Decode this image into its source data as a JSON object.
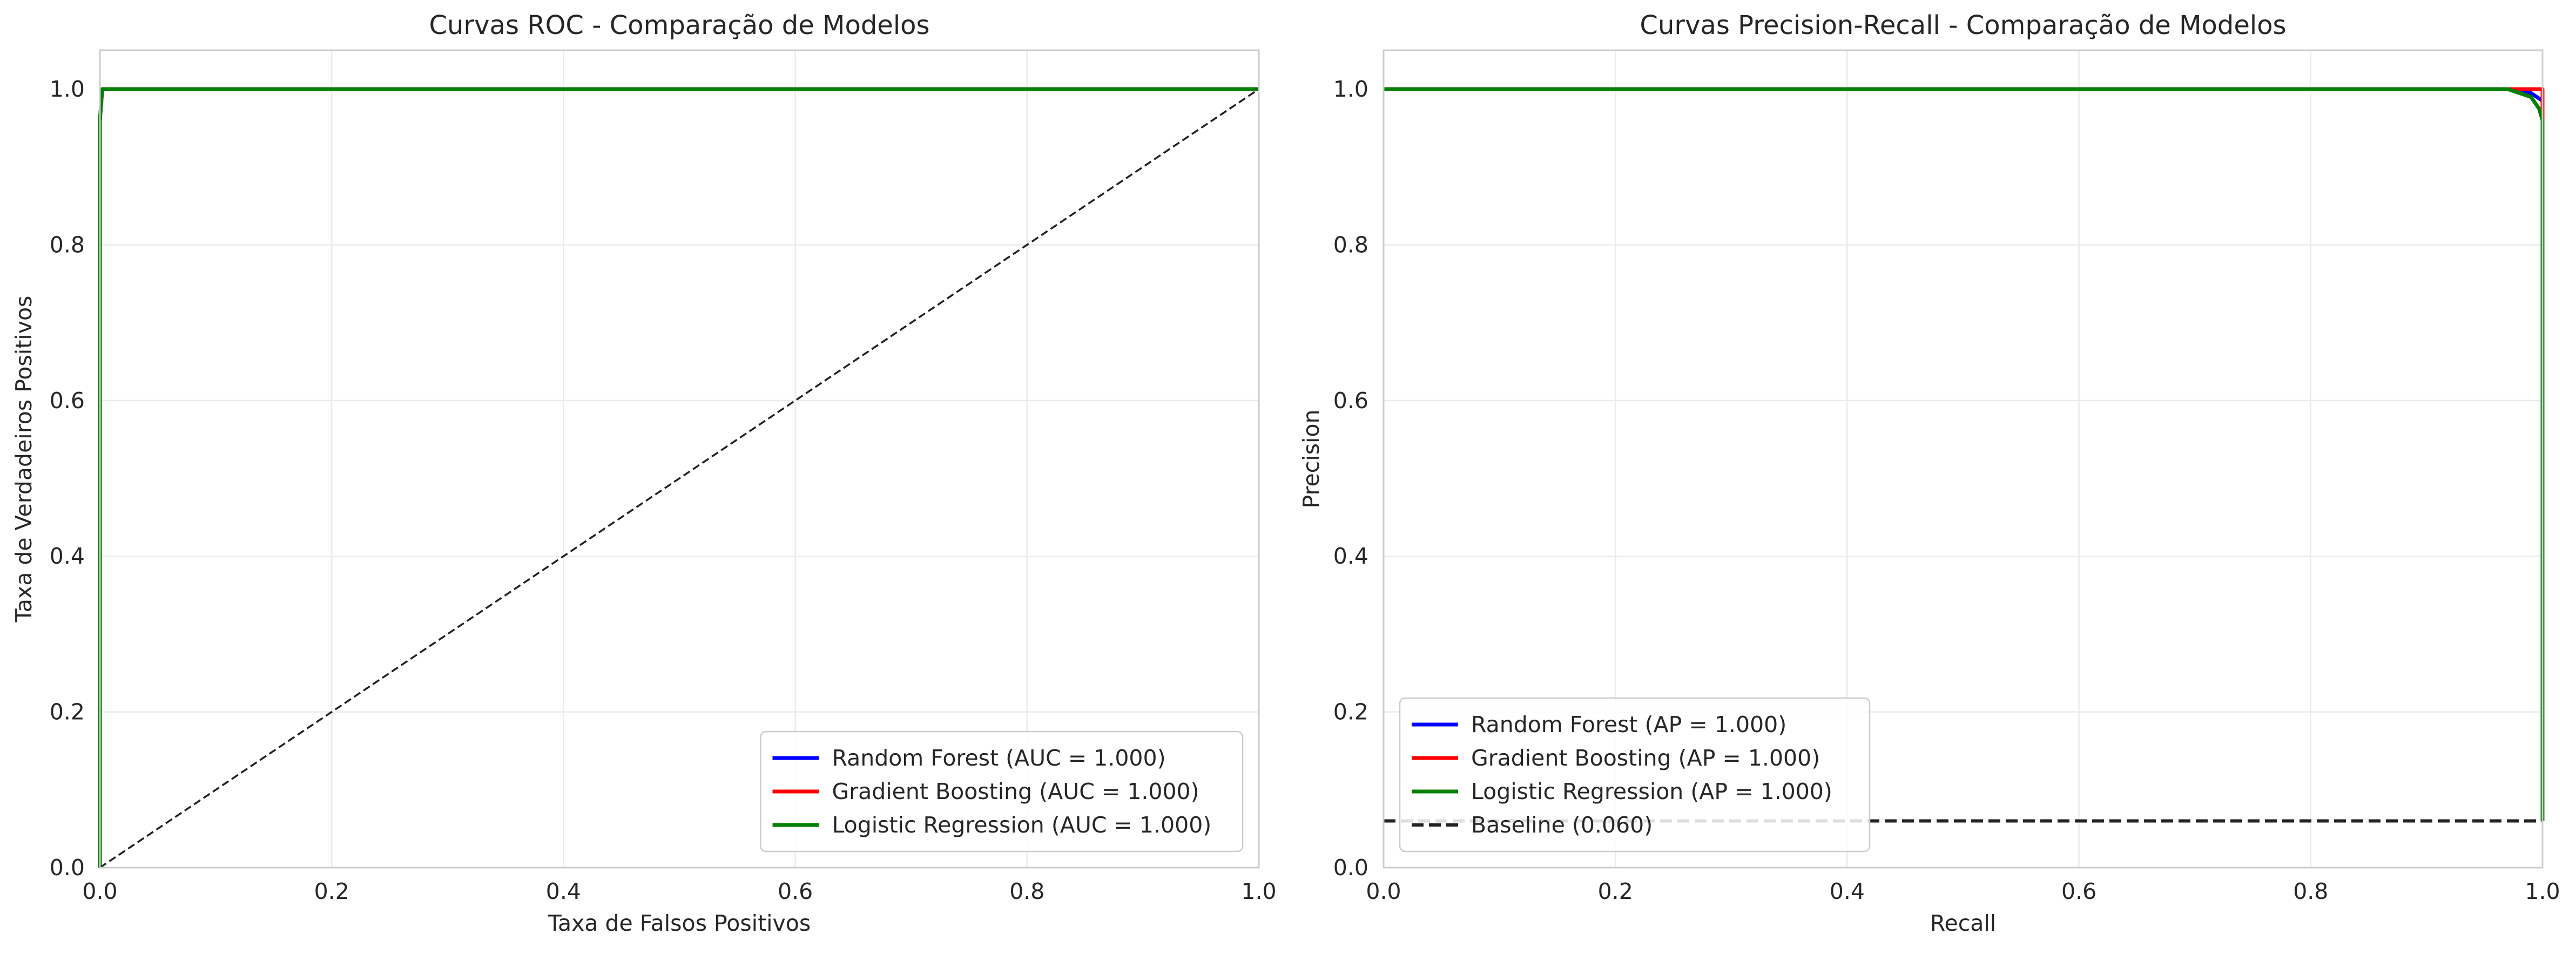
{
  "chart_data": [
    {
      "type": "line",
      "title": "Curvas ROC - Comparação de Modelos",
      "xlabel": "Taxa de Falsos Positivos",
      "ylabel": "Taxa de Verdadeiros Positivos",
      "xlim": [
        0,
        1.0
      ],
      "ylim": [
        0,
        1.05
      ],
      "xticks": [
        "0.0",
        "0.2",
        "0.4",
        "0.6",
        "0.8",
        "1.0"
      ],
      "yticks": [
        "0.0",
        "0.2",
        "0.4",
        "0.6",
        "0.8",
        "1.0"
      ],
      "grid": true,
      "legend_position": "lower-right",
      "series": [
        {
          "name": "Random Forest (AUC = 1.000)",
          "color": "#0000ff",
          "style": "solid",
          "x": [
            0,
            0,
            0.002,
            1.0
          ],
          "y": [
            0,
            0.96,
            1.0,
            1.0
          ]
        },
        {
          "name": "Gradient Boosting (AUC = 1.000)",
          "color": "#ff0000",
          "style": "solid",
          "x": [
            0,
            0,
            0.002,
            1.0
          ],
          "y": [
            0,
            0.96,
            1.0,
            1.0
          ]
        },
        {
          "name": "Logistic Regression (AUC = 1.000)",
          "color": "#008000",
          "style": "solid",
          "x": [
            0,
            0,
            0.002,
            1.0
          ],
          "y": [
            0,
            0.96,
            1.0,
            1.0
          ]
        },
        {
          "name": "",
          "color": "#222222",
          "style": "dashed-thin",
          "legend": false,
          "x": [
            0,
            1.0
          ],
          "y": [
            0,
            1.0
          ]
        }
      ]
    },
    {
      "type": "line",
      "title": "Curvas Precision-Recall - Comparação de Modelos",
      "xlabel": "Recall",
      "ylabel": "Precision",
      "xlim": [
        0,
        1.0
      ],
      "ylim": [
        0,
        1.05
      ],
      "xticks": [
        "0.0",
        "0.2",
        "0.4",
        "0.6",
        "0.8",
        "1.0"
      ],
      "yticks": [
        "0.0",
        "0.2",
        "0.4",
        "0.6",
        "0.8",
        "1.0"
      ],
      "grid": true,
      "legend_position": "lower-left",
      "series": [
        {
          "name": "Random Forest (AP = 1.000)",
          "color": "#0000ff",
          "style": "solid",
          "x": [
            0,
            0.97,
            0.99,
            1.0,
            1.0
          ],
          "y": [
            1.0,
            1.0,
            0.995,
            0.985,
            0.06
          ]
        },
        {
          "name": "Gradient Boosting (AP = 1.000)",
          "color": "#ff0000",
          "style": "solid",
          "x": [
            0,
            1.0,
            1.0
          ],
          "y": [
            1.0,
            1.0,
            0.06
          ]
        },
        {
          "name": "Logistic Regression (AP = 1.000)",
          "color": "#008000",
          "style": "solid",
          "x": [
            0,
            0.97,
            0.99,
            0.997,
            1.0,
            1.0
          ],
          "y": [
            1.0,
            1.0,
            0.99,
            0.975,
            0.96,
            0.06
          ]
        },
        {
          "name": "Baseline (0.060)",
          "color": "#222222",
          "style": "dashed",
          "x": [
            0,
            1.0
          ],
          "y": [
            0.06,
            0.06
          ]
        }
      ]
    }
  ]
}
